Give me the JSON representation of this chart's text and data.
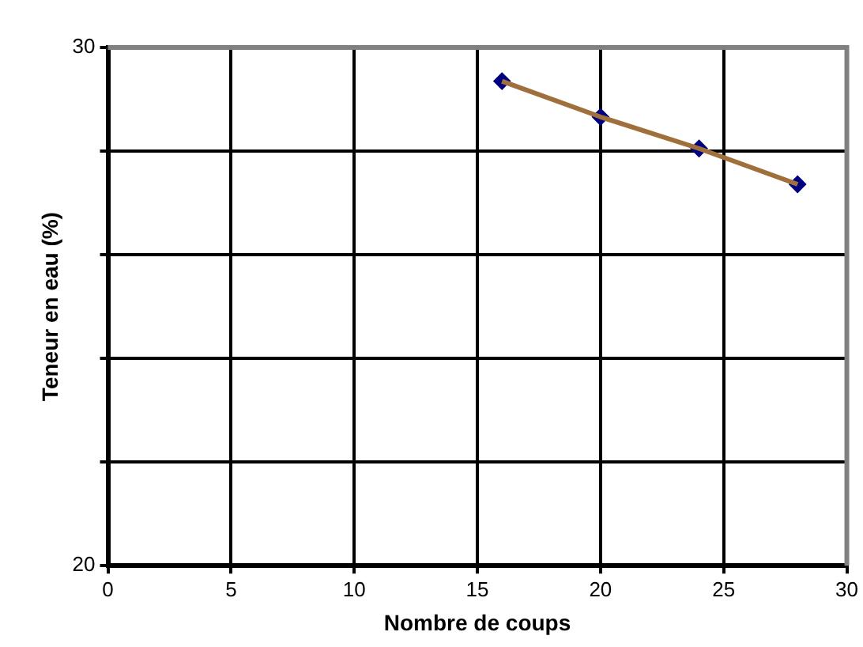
{
  "chart_data": {
    "type": "scatter",
    "xlabel": "Nombre de coups",
    "ylabel": "Teneur en eau (%)",
    "xlim": [
      0,
      30
    ],
    "xticks": [
      0,
      5,
      10,
      15,
      20,
      25,
      30
    ],
    "ylim": [
      20,
      30
    ],
    "yticks": [
      20,
      {
        "value": 22,
        "label": null
      },
      {
        "value": 24,
        "label": null
      },
      {
        "value": 26,
        "label": null
      },
      {
        "value": 28,
        "label": null
      },
      30
    ],
    "grid": true,
    "legend": false,
    "series": [
      {
        "type": "line",
        "color": "#a0703c",
        "marker": "none",
        "x": [
          16,
          20,
          24,
          28
        ],
        "values": [
          29.35,
          28.66,
          28.05,
          27.36
        ]
      },
      {
        "type": "scatter",
        "color": "#000080",
        "marker": "diamond",
        "x": [
          16,
          20,
          24,
          28
        ],
        "values": [
          29.35,
          28.66,
          28.05,
          27.36
        ]
      }
    ]
  }
}
